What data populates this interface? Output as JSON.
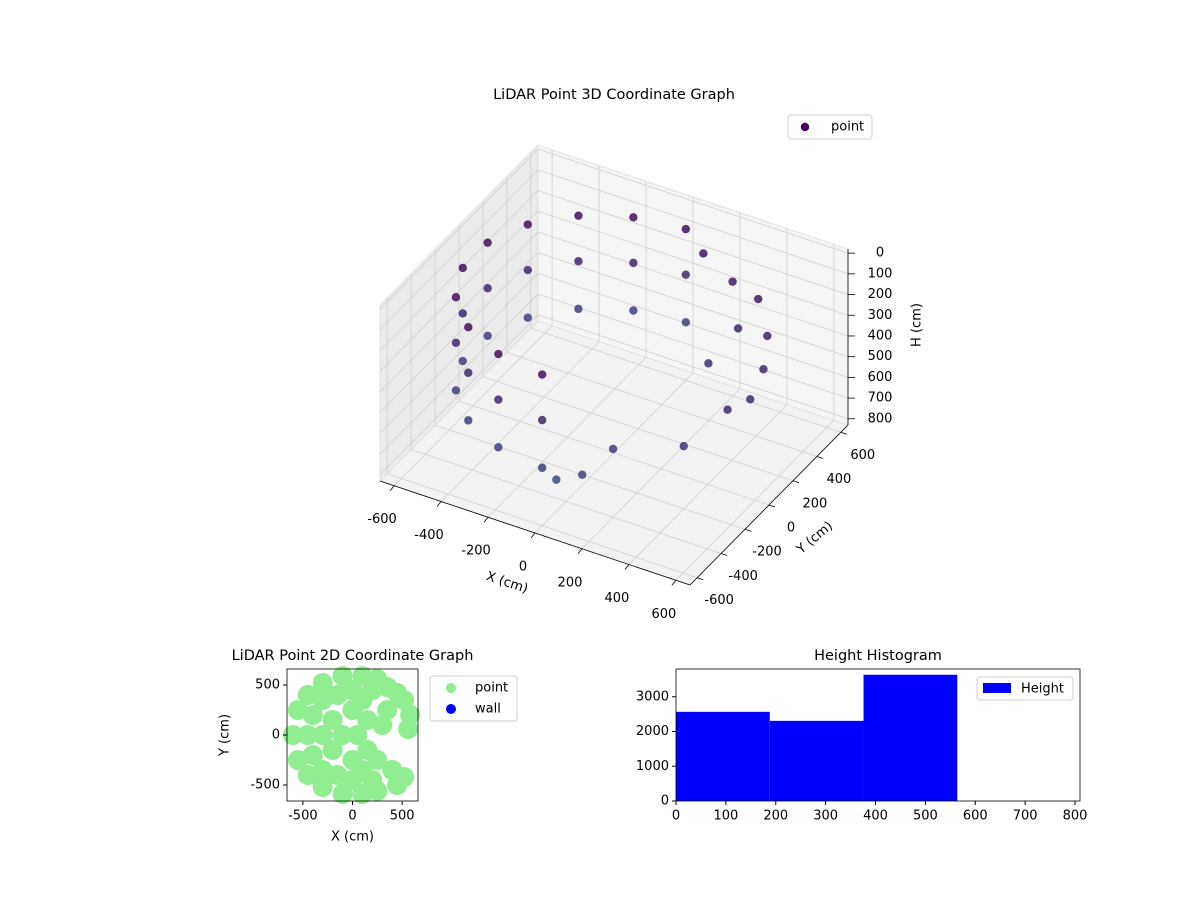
{
  "chart_data": [
    {
      "type": "scatter3d",
      "title": "LiDAR Point 3D Coordinate Graph",
      "x_label": "X (cm)",
      "y_label": "Y (cm)",
      "z_label": "H (cm)",
      "xlim": [
        -660,
        660
      ],
      "ylim": [
        -660,
        660
      ],
      "zlim": [
        830,
        -20
      ],
      "xticks": [
        -600,
        -400,
        -200,
        0,
        200,
        400,
        600
      ],
      "yticks": [
        -600,
        -400,
        -200,
        0,
        200,
        400,
        600
      ],
      "zticks": [
        0,
        100,
        200,
        300,
        400,
        500,
        600,
        700,
        800
      ],
      "grid": true,
      "legend": "upper right",
      "colormap": [
        "#440154",
        "#3b5f8f"
      ],
      "series": [
        {
          "name": "point",
          "color": "#440154",
          "x": [
            0,
            0,
            0,
            -205,
            -205,
            -205,
            -386,
            -386,
            -386,
            -520,
            -520,
            -520,
            -591,
            -591,
            -591,
            -591,
            -591,
            -591,
            -520,
            -520,
            -520,
            -386,
            -386,
            -386,
            -205,
            -205,
            -205,
            0,
            0,
            0,
            100,
            250,
            400,
            500,
            560,
            580,
            560,
            300,
            200,
            150,
            50,
            350,
            450
          ],
          "y": [
            600,
            600,
            600,
            564,
            564,
            564,
            460,
            460,
            460,
            300,
            300,
            300,
            104,
            104,
            104,
            -104,
            -104,
            -104,
            -300,
            -300,
            -300,
            -460,
            -460,
            -460,
            -564,
            -564,
            -564,
            -600,
            -600,
            -600,
            550,
            500,
            420,
            300,
            150,
            0,
            -150,
            200,
            -400,
            -560,
            -580,
            350,
            -300
          ],
          "z": [
            100,
            320,
            550,
            100,
            320,
            550,
            100,
            320,
            550,
            100,
            320,
            550,
            100,
            320,
            550,
            100,
            320,
            550,
            100,
            320,
            550,
            100,
            320,
            550,
            100,
            320,
            550,
            100,
            320,
            550,
            150,
            200,
            180,
            250,
            300,
            350,
            320,
            400,
            500,
            550,
            600,
            300,
            450
          ]
        }
      ]
    },
    {
      "type": "scatter",
      "title": "LiDAR Point 2D Coordinate Graph",
      "x_label": "X (cm)",
      "y_label": "Y (cm)",
      "xlim": [
        -660,
        660
      ],
      "ylim": [
        -660,
        660
      ],
      "xticks": [
        -500,
        0,
        500
      ],
      "yticks": [
        -500,
        0,
        500
      ],
      "legend": "outside upper right",
      "series": [
        {
          "name": "point",
          "color": "#90ee90",
          "x": [
            -600,
            -550,
            -550,
            -450,
            -450,
            -300,
            -300,
            -100,
            -100,
            100,
            100,
            250,
            250,
            -450,
            -400,
            -400,
            -300,
            -300,
            -300,
            -200,
            -200,
            -150,
            -150,
            -100,
            0,
            0,
            0,
            0,
            50,
            100,
            100,
            150,
            150,
            200,
            200,
            350,
            450,
            520,
            580,
            560,
            520,
            450,
            400,
            300,
            350,
            250
          ],
          "y": [
            0,
            250,
            -250,
            400,
            -400,
            520,
            -520,
            590,
            -590,
            590,
            -590,
            560,
            -560,
            0,
            200,
            -200,
            350,
            -350,
            0,
            150,
            -150,
            400,
            -400,
            0,
            250,
            -250,
            450,
            -450,
            0,
            350,
            -350,
            150,
            -150,
            450,
            -450,
            480,
            420,
            350,
            200,
            60,
            -420,
            -500,
            -350,
            100,
            250,
            -250
          ]
        },
        {
          "name": "wall",
          "color": "#0000ff",
          "x": [],
          "y": []
        }
      ]
    },
    {
      "type": "histogram",
      "title": "Height Histogram",
      "name": "Height",
      "color": "#0000ff",
      "bins": [
        0,
        188,
        376,
        564,
        752
      ],
      "counts": [
        2567,
        2307,
        3634,
        0
      ],
      "xlim": [
        0,
        810
      ],
      "ylim": [
        0,
        3800
      ],
      "xticks": [
        0,
        100,
        200,
        300,
        400,
        500,
        600,
        700,
        800
      ],
      "yticks": [
        0,
        1000,
        2000,
        3000
      ],
      "legend": "upper right"
    }
  ]
}
